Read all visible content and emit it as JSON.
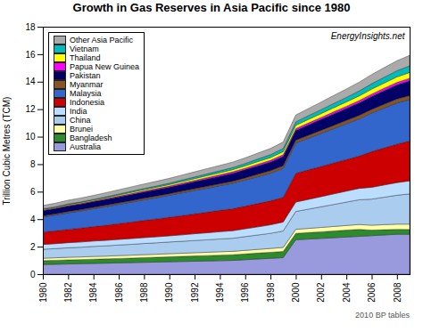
{
  "chart_data": {
    "type": "area",
    "stacked": true,
    "title": "Growth in Gas Reserves in Asia Pacific since 1980",
    "ylabel": "Trillion Cubic Metres (TCM)",
    "annotations": [
      "EnergyInsights.net",
      "2010 BP tables"
    ],
    "x": [
      1980,
      1981,
      1982,
      1983,
      1984,
      1985,
      1986,
      1987,
      1988,
      1989,
      1990,
      1991,
      1992,
      1993,
      1994,
      1995,
      1996,
      1997,
      1998,
      1999,
      2000,
      2001,
      2002,
      2003,
      2004,
      2005,
      2006,
      2007,
      2008,
      2009
    ],
    "xlim": [
      1980,
      2009
    ],
    "xticks": [
      1980,
      1982,
      1984,
      1986,
      1988,
      1990,
      1992,
      1994,
      1996,
      1998,
      2000,
      2002,
      2004,
      2006,
      2008
    ],
    "ylim": [
      0,
      18
    ],
    "yticks": [
      0,
      2,
      4,
      6,
      8,
      10,
      12,
      14,
      16,
      18
    ],
    "grid": false,
    "legend": "upper left",
    "series": [
      {
        "name": "Australia",
        "color": "#9999dd",
        "values": [
          0.7,
          0.72,
          0.74,
          0.76,
          0.78,
          0.8,
          0.82,
          0.84,
          0.86,
          0.88,
          0.9,
          0.92,
          0.94,
          0.96,
          0.98,
          1.0,
          1.05,
          1.1,
          1.15,
          1.2,
          2.5,
          2.55,
          2.6,
          2.65,
          2.7,
          2.75,
          2.8,
          2.85,
          2.9,
          2.9
        ]
      },
      {
        "name": "Bangladesh",
        "color": "#2d8a2d",
        "values": [
          0.28,
          0.29,
          0.3,
          0.3,
          0.31,
          0.31,
          0.32,
          0.33,
          0.34,
          0.35,
          0.36,
          0.37,
          0.38,
          0.39,
          0.4,
          0.41,
          0.42,
          0.43,
          0.44,
          0.45,
          0.46,
          0.47,
          0.48,
          0.49,
          0.5,
          0.51,
          0.4,
          0.38,
          0.36,
          0.35
        ]
      },
      {
        "name": "Brunei",
        "color": "#ffffaa",
        "values": [
          0.18,
          0.18,
          0.19,
          0.19,
          0.2,
          0.2,
          0.21,
          0.21,
          0.22,
          0.22,
          0.23,
          0.23,
          0.24,
          0.24,
          0.25,
          0.25,
          0.26,
          0.27,
          0.28,
          0.29,
          0.3,
          0.31,
          0.32,
          0.33,
          0.34,
          0.35,
          0.36,
          0.37,
          0.38,
          0.39
        ]
      },
      {
        "name": "China",
        "color": "#aaccee",
        "values": [
          0.65,
          0.67,
          0.69,
          0.71,
          0.73,
          0.75,
          0.77,
          0.79,
          0.81,
          0.83,
          0.85,
          0.87,
          0.89,
          0.91,
          0.93,
          0.95,
          1.0,
          1.05,
          1.1,
          1.2,
          1.3,
          1.4,
          1.5,
          1.6,
          1.7,
          1.8,
          1.9,
          2.0,
          2.1,
          2.2
        ]
      },
      {
        "name": "India",
        "color": "#bbddff",
        "values": [
          0.35,
          0.36,
          0.37,
          0.38,
          0.39,
          0.4,
          0.41,
          0.42,
          0.43,
          0.44,
          0.45,
          0.47,
          0.49,
          0.51,
          0.53,
          0.55,
          0.57,
          0.59,
          0.62,
          0.65,
          0.68,
          0.71,
          0.74,
          0.77,
          0.8,
          0.83,
          0.86,
          0.89,
          0.92,
          0.95
        ]
      },
      {
        "name": "Indonesia",
        "color": "#cc0000",
        "values": [
          0.9,
          0.93,
          0.97,
          1.01,
          1.05,
          1.1,
          1.15,
          1.2,
          1.25,
          1.3,
          1.35,
          1.4,
          1.45,
          1.5,
          1.55,
          1.6,
          1.65,
          1.7,
          1.75,
          1.8,
          2.1,
          2.15,
          2.2,
          2.25,
          2.3,
          2.35,
          2.6,
          2.7,
          2.8,
          2.9
        ]
      },
      {
        "name": "Malaysia",
        "color": "#3366cc",
        "values": [
          1.1,
          1.15,
          1.2,
          1.25,
          1.3,
          1.35,
          1.4,
          1.45,
          1.5,
          1.55,
          1.6,
          1.65,
          1.7,
          1.75,
          1.8,
          1.85,
          1.9,
          1.95,
          2.0,
          2.1,
          2.2,
          2.3,
          2.4,
          2.5,
          2.6,
          2.7,
          2.8,
          2.9,
          3.0,
          3.0
        ]
      },
      {
        "name": "Myanmar",
        "color": "#885522",
        "values": [
          0.08,
          0.08,
          0.09,
          0.09,
          0.09,
          0.1,
          0.1,
          0.1,
          0.11,
          0.11,
          0.11,
          0.12,
          0.12,
          0.13,
          0.13,
          0.14,
          0.15,
          0.17,
          0.18,
          0.19,
          0.2,
          0.21,
          0.22,
          0.23,
          0.24,
          0.25,
          0.26,
          0.27,
          0.28,
          0.3
        ]
      },
      {
        "name": "Pakistan",
        "color": "#000066",
        "values": [
          0.38,
          0.39,
          0.4,
          0.41,
          0.42,
          0.43,
          0.44,
          0.45,
          0.46,
          0.47,
          0.48,
          0.5,
          0.52,
          0.54,
          0.56,
          0.58,
          0.6,
          0.62,
          0.64,
          0.68,
          0.72,
          0.76,
          0.8,
          0.84,
          0.88,
          0.92,
          0.96,
          1.0,
          1.04,
          1.08
        ]
      },
      {
        "name": "Papua New Guinea",
        "color": "#ff00ff",
        "values": [
          0.04,
          0.04,
          0.05,
          0.05,
          0.05,
          0.06,
          0.06,
          0.07,
          0.07,
          0.08,
          0.08,
          0.09,
          0.09,
          0.1,
          0.1,
          0.11,
          0.11,
          0.12,
          0.12,
          0.13,
          0.13,
          0.14,
          0.14,
          0.15,
          0.15,
          0.16,
          0.16,
          0.17,
          0.17,
          0.18
        ]
      },
      {
        "name": "Thailand",
        "color": "#ffff00",
        "values": [
          0.05,
          0.05,
          0.06,
          0.06,
          0.07,
          0.07,
          0.08,
          0.09,
          0.1,
          0.1,
          0.11,
          0.12,
          0.13,
          0.14,
          0.15,
          0.16,
          0.17,
          0.19,
          0.2,
          0.22,
          0.24,
          0.26,
          0.28,
          0.3,
          0.32,
          0.34,
          0.36,
          0.38,
          0.4,
          0.42
        ]
      },
      {
        "name": "Vietnam",
        "color": "#00bbbb",
        "values": [
          0.04,
          0.04,
          0.05,
          0.05,
          0.05,
          0.06,
          0.07,
          0.08,
          0.08,
          0.09,
          0.1,
          0.11,
          0.12,
          0.13,
          0.14,
          0.15,
          0.17,
          0.19,
          0.21,
          0.23,
          0.25,
          0.27,
          0.29,
          0.31,
          0.33,
          0.36,
          0.39,
          0.42,
          0.45,
          0.48
        ]
      },
      {
        "name": "Other Asia Pacific",
        "color": "#aaaaaa",
        "values": [
          0.25,
          0.26,
          0.27,
          0.28,
          0.29,
          0.3,
          0.31,
          0.32,
          0.33,
          0.34,
          0.35,
          0.36,
          0.37,
          0.38,
          0.39,
          0.4,
          0.41,
          0.43,
          0.45,
          0.47,
          0.5,
          0.52,
          0.55,
          0.58,
          0.61,
          0.64,
          0.67,
          0.7,
          0.73,
          0.76
        ]
      }
    ]
  }
}
